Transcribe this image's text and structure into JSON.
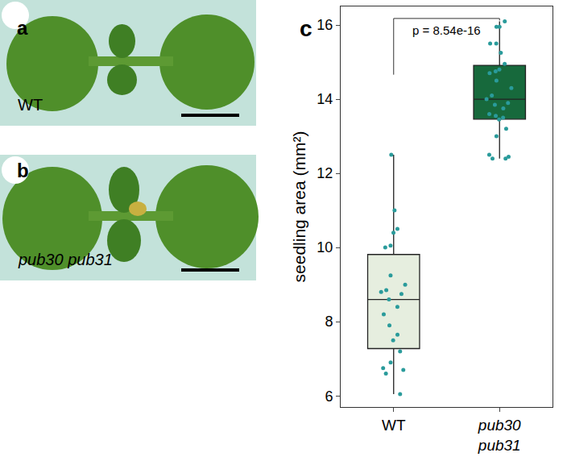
{
  "images": [
    {
      "panel": "a",
      "label": "WT"
    },
    {
      "panel": "b",
      "label": "pub30 pub31"
    }
  ],
  "chart_data": {
    "type": "box",
    "panel": "c",
    "y_label": "seedling area (mm²)",
    "categories": [
      "WT",
      "pub30 pub31"
    ],
    "values": [
      [
        12.5,
        11.0,
        10.5,
        10.4,
        10.05,
        10.0,
        9.25,
        9.0,
        8.85,
        8.8,
        8.75,
        8.6,
        8.4,
        8.2,
        7.9,
        7.65,
        7.5,
        7.2,
        6.9,
        6.75,
        6.7,
        6.6,
        6.05
      ],
      [
        16.1,
        15.95,
        15.95,
        15.5,
        15.5,
        15.25,
        14.95,
        14.8,
        14.75,
        14.7,
        14.5,
        14.3,
        14.1,
        14.0,
        13.9,
        13.85,
        13.75,
        13.6,
        13.55,
        13.5,
        13.45,
        13.2,
        13.0,
        12.5,
        12.45,
        12.4,
        12.4
      ]
    ],
    "colors": [
      "#e6eedf",
      "#17693c"
    ],
    "color": "#2a9b9b",
    "annotations": [
      "p = 8.54e-16"
    ],
    "ylim": [
      5.7,
      16.5
    ],
    "yticks": [
      6,
      8,
      10,
      12,
      14,
      16
    ],
    "grid": false
  }
}
